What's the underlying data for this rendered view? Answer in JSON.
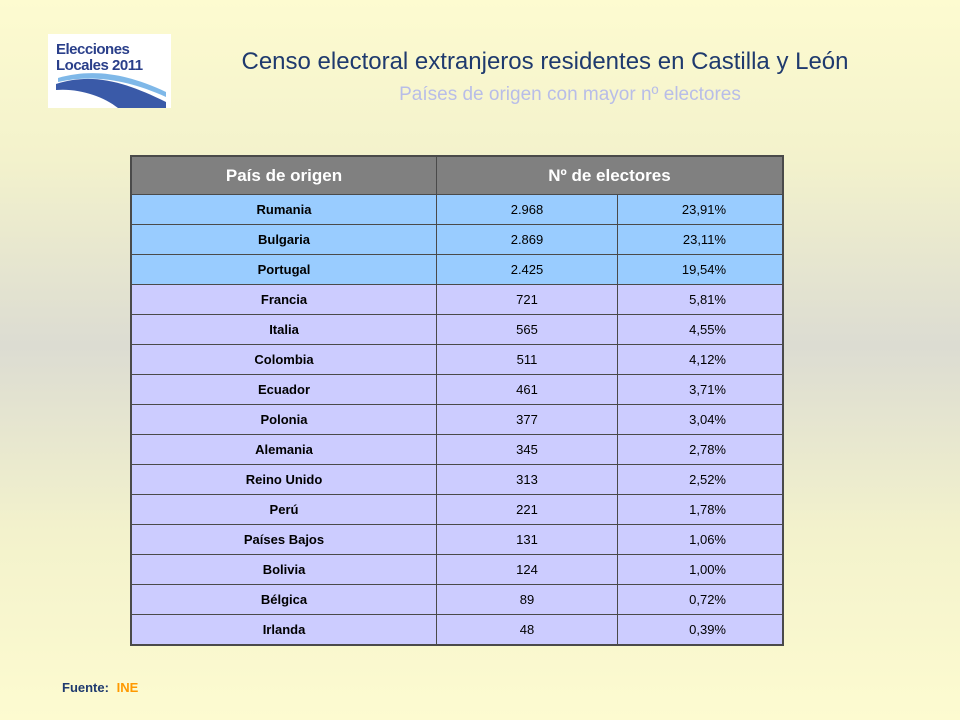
{
  "logo": {
    "line1": "Elecciones",
    "line2": "Locales 2011"
  },
  "title": "Censo electoral extranjeros residentes en Castilla y León",
  "subtitle": "Países de origen con mayor nº electores",
  "table": {
    "headers": [
      "País de origen",
      "Nº de electores"
    ],
    "rows": [
      {
        "country": "Rumania",
        "electors": "2.968",
        "percent": "23,91%"
      },
      {
        "country": "Bulgaria",
        "electors": "2.869",
        "percent": "23,11%"
      },
      {
        "country": "Portugal",
        "electors": "2.425",
        "percent": "19,54%"
      },
      {
        "country": "Francia",
        "electors": "721",
        "percent": "5,81%"
      },
      {
        "country": "Italia",
        "electors": "565",
        "percent": "4,55%"
      },
      {
        "country": "Colombia",
        "electors": "511",
        "percent": "4,12%"
      },
      {
        "country": "Ecuador",
        "electors": "461",
        "percent": "3,71%"
      },
      {
        "country": "Polonia",
        "electors": "377",
        "percent": "3,04%"
      },
      {
        "country": "Alemania",
        "electors": "345",
        "percent": "2,78%"
      },
      {
        "country": "Reino Unido",
        "electors": "313",
        "percent": "2,52%"
      },
      {
        "country": "Perú",
        "electors": "221",
        "percent": "1,78%"
      },
      {
        "country": "Países Bajos",
        "electors": "131",
        "percent": "1,06%"
      },
      {
        "country": "Bolivia",
        "electors": "124",
        "percent": "1,00%"
      },
      {
        "country": "Bélgica",
        "electors": "89",
        "percent": "0,72%"
      },
      {
        "country": "Irlanda",
        "electors": "48",
        "percent": "0,39%"
      }
    ]
  },
  "source": {
    "label": "Fuente:",
    "value": "INE"
  },
  "colors": {
    "header_bg": "#808080",
    "top_rows_bg": "#99ccff",
    "other_rows_bg": "#ccccff",
    "title": "#1f3a6e",
    "subtitle": "#b8bde8",
    "source_value": "#ff9900"
  }
}
